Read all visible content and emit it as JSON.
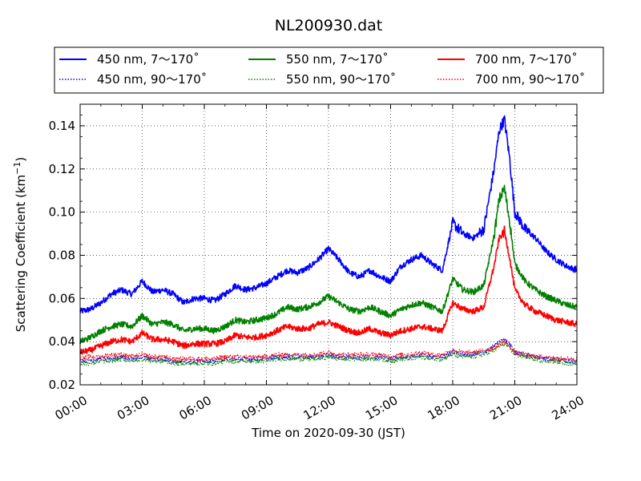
{
  "chart_data": {
    "type": "line",
    "title": "NL200930.dat",
    "xlabel": "Time on 2020-09-30 (JST)",
    "ylabel": "Scattering Coefficient (km",
    "ylabel_sup": "−1",
    "ylabel_end": ")",
    "xlim": [
      "00:00",
      "24:00"
    ],
    "ylim": [
      0.02,
      0.15
    ],
    "x_ticks": [
      "00:00",
      "03:00",
      "06:00",
      "09:00",
      "12:00",
      "15:00",
      "18:00",
      "21:00",
      "24:00"
    ],
    "y_ticks": [
      "0.02",
      "0.04",
      "0.06",
      "0.08",
      "0.10",
      "0.12",
      "0.14"
    ],
    "grid": true,
    "legend_placement": "top, above plot, 3 columns",
    "x_hours": [
      0,
      0.5,
      1,
      1.5,
      2,
      2.5,
      3,
      3.5,
      4,
      4.5,
      5,
      5.5,
      6,
      6.5,
      7,
      7.5,
      8,
      8.5,
      9,
      9.5,
      10,
      10.5,
      11,
      11.5,
      12,
      12.5,
      13,
      13.5,
      14,
      14.5,
      15,
      15.5,
      16,
      16.5,
      17,
      17.5,
      18,
      18.5,
      19,
      19.5,
      20,
      20.25,
      20.5,
      20.75,
      21,
      21.5,
      22,
      22.5,
      23,
      23.5,
      24
    ],
    "series": [
      {
        "name": "450 nm, 7～170˚",
        "color": "#0000ff",
        "style": "solid",
        "values": [
          0.054,
          0.055,
          0.058,
          0.062,
          0.064,
          0.062,
          0.068,
          0.063,
          0.064,
          0.062,
          0.058,
          0.06,
          0.06,
          0.059,
          0.062,
          0.066,
          0.064,
          0.065,
          0.067,
          0.07,
          0.073,
          0.072,
          0.074,
          0.078,
          0.083,
          0.078,
          0.072,
          0.07,
          0.073,
          0.07,
          0.068,
          0.075,
          0.078,
          0.08,
          0.076,
          0.073,
          0.095,
          0.09,
          0.088,
          0.092,
          0.12,
          0.138,
          0.143,
          0.125,
          0.1,
          0.092,
          0.088,
          0.082,
          0.078,
          0.075,
          0.073
        ]
      },
      {
        "name": "550 nm, 7～170˚",
        "color": "#008000",
        "style": "solid",
        "values": [
          0.04,
          0.042,
          0.045,
          0.047,
          0.048,
          0.047,
          0.052,
          0.048,
          0.049,
          0.048,
          0.045,
          0.046,
          0.046,
          0.045,
          0.047,
          0.05,
          0.049,
          0.05,
          0.051,
          0.053,
          0.056,
          0.055,
          0.056,
          0.058,
          0.061,
          0.058,
          0.055,
          0.054,
          0.056,
          0.054,
          0.052,
          0.055,
          0.057,
          0.058,
          0.056,
          0.054,
          0.069,
          0.064,
          0.063,
          0.066,
          0.089,
          0.106,
          0.111,
          0.096,
          0.076,
          0.068,
          0.064,
          0.061,
          0.059,
          0.057,
          0.056
        ]
      },
      {
        "name": "700 nm, 7～170˚",
        "color": "#ff0000",
        "style": "solid",
        "values": [
          0.035,
          0.036,
          0.038,
          0.04,
          0.041,
          0.04,
          0.044,
          0.041,
          0.041,
          0.04,
          0.038,
          0.039,
          0.039,
          0.039,
          0.04,
          0.043,
          0.042,
          0.042,
          0.043,
          0.045,
          0.047,
          0.046,
          0.046,
          0.048,
          0.049,
          0.047,
          0.045,
          0.044,
          0.046,
          0.044,
          0.043,
          0.045,
          0.046,
          0.047,
          0.046,
          0.045,
          0.058,
          0.055,
          0.054,
          0.056,
          0.075,
          0.088,
          0.091,
          0.079,
          0.064,
          0.057,
          0.054,
          0.052,
          0.05,
          0.049,
          0.048
        ]
      },
      {
        "name": "450 nm, 90～170˚",
        "color": "#0000ff",
        "style": "dotted",
        "values": [
          0.031,
          0.031,
          0.032,
          0.032,
          0.033,
          0.032,
          0.033,
          0.032,
          0.032,
          0.031,
          0.031,
          0.031,
          0.031,
          0.031,
          0.032,
          0.032,
          0.032,
          0.032,
          0.032,
          0.033,
          0.033,
          0.033,
          0.033,
          0.033,
          0.034,
          0.033,
          0.033,
          0.033,
          0.033,
          0.033,
          0.032,
          0.033,
          0.033,
          0.034,
          0.033,
          0.033,
          0.035,
          0.034,
          0.034,
          0.035,
          0.038,
          0.04,
          0.041,
          0.039,
          0.035,
          0.034,
          0.033,
          0.032,
          0.032,
          0.031,
          0.031
        ]
      },
      {
        "name": "550 nm, 90～170˚",
        "color": "#008000",
        "style": "dotted",
        "values": [
          0.03,
          0.03,
          0.031,
          0.031,
          0.032,
          0.031,
          0.032,
          0.031,
          0.031,
          0.03,
          0.03,
          0.03,
          0.03,
          0.03,
          0.031,
          0.031,
          0.031,
          0.031,
          0.031,
          0.032,
          0.032,
          0.032,
          0.032,
          0.032,
          0.033,
          0.032,
          0.032,
          0.032,
          0.032,
          0.032,
          0.031,
          0.032,
          0.032,
          0.033,
          0.032,
          0.032,
          0.034,
          0.033,
          0.033,
          0.034,
          0.036,
          0.038,
          0.039,
          0.037,
          0.034,
          0.033,
          0.032,
          0.031,
          0.031,
          0.03,
          0.03
        ]
      },
      {
        "name": "700 nm, 90～170˚",
        "color": "#ff0000",
        "style": "dotted",
        "values": [
          0.032,
          0.033,
          0.033,
          0.034,
          0.034,
          0.033,
          0.034,
          0.033,
          0.033,
          0.032,
          0.032,
          0.032,
          0.032,
          0.032,
          0.033,
          0.033,
          0.033,
          0.033,
          0.033,
          0.034,
          0.034,
          0.034,
          0.034,
          0.034,
          0.035,
          0.034,
          0.034,
          0.034,
          0.034,
          0.034,
          0.033,
          0.034,
          0.034,
          0.035,
          0.034,
          0.034,
          0.036,
          0.035,
          0.035,
          0.036,
          0.037,
          0.039,
          0.04,
          0.038,
          0.035,
          0.034,
          0.033,
          0.033,
          0.032,
          0.032,
          0.032
        ]
      }
    ]
  }
}
